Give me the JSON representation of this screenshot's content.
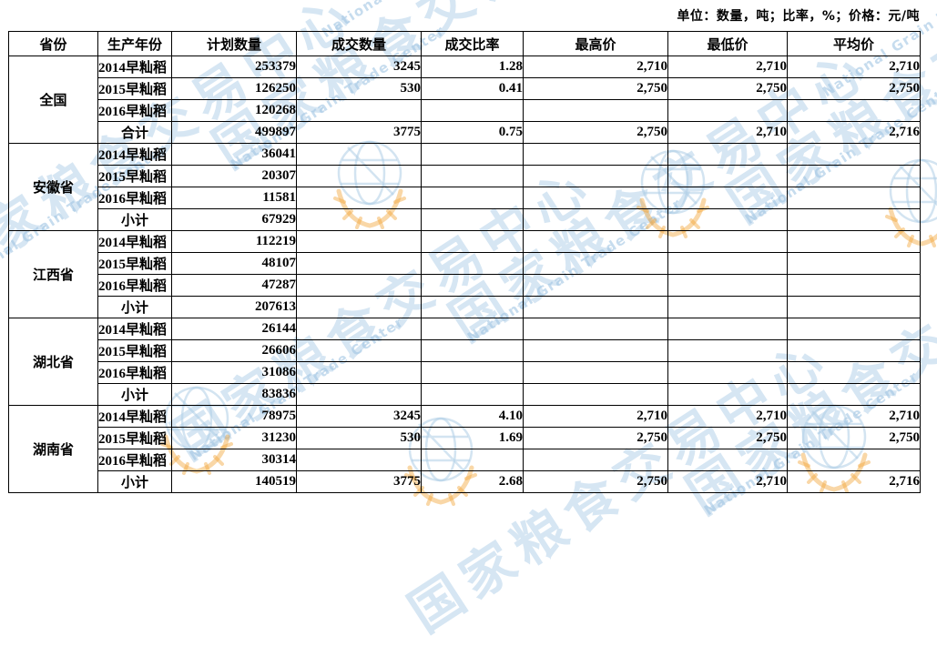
{
  "unit_note": "单位：数量，吨；比率，%；价格：元/吨",
  "watermark": {
    "cjk_text": "国家粮食交易中心",
    "en_text": "National Grain Trade Center",
    "blue": "#aecde6",
    "orange": "#f2a63c"
  },
  "table": {
    "headers": [
      "省份",
      "生产年份",
      "计划数量",
      "成交数量",
      "成交比率",
      "最高价",
      "最低价",
      "平均价"
    ],
    "sections": [
      {
        "province": "全国",
        "rows": [
          {
            "year": "2014早籼稻",
            "planned": "253379",
            "deal": "3245",
            "ratio": "1.28",
            "high": "2,710",
            "low": "2,710",
            "avg": "2,710",
            "summary": false
          },
          {
            "year": "2015早籼稻",
            "planned": "126250",
            "deal": "530",
            "ratio": "0.41",
            "high": "2,750",
            "low": "2,750",
            "avg": "2,750",
            "summary": false
          },
          {
            "year": "2016早籼稻",
            "planned": "120268",
            "deal": "",
            "ratio": "",
            "high": "",
            "low": "",
            "avg": "",
            "summary": false
          },
          {
            "year": "合计",
            "planned": "499897",
            "deal": "3775",
            "ratio": "0.75",
            "high": "2,750",
            "low": "2,710",
            "avg": "2,716",
            "summary": true
          }
        ]
      },
      {
        "province": "安徽省",
        "rows": [
          {
            "year": "2014早籼稻",
            "planned": "36041",
            "deal": "",
            "ratio": "",
            "high": "",
            "low": "",
            "avg": "",
            "summary": false
          },
          {
            "year": "2015早籼稻",
            "planned": "20307",
            "deal": "",
            "ratio": "",
            "high": "",
            "low": "",
            "avg": "",
            "summary": false
          },
          {
            "year": "2016早籼稻",
            "planned": "11581",
            "deal": "",
            "ratio": "",
            "high": "",
            "low": "",
            "avg": "",
            "summary": false
          },
          {
            "year": "小计",
            "planned": "67929",
            "deal": "",
            "ratio": "",
            "high": "",
            "low": "",
            "avg": "",
            "summary": true
          }
        ]
      },
      {
        "province": "江西省",
        "rows": [
          {
            "year": "2014早籼稻",
            "planned": "112219",
            "deal": "",
            "ratio": "",
            "high": "",
            "low": "",
            "avg": "",
            "summary": false
          },
          {
            "year": "2015早籼稻",
            "planned": "48107",
            "deal": "",
            "ratio": "",
            "high": "",
            "low": "",
            "avg": "",
            "summary": false
          },
          {
            "year": "2016早籼稻",
            "planned": "47287",
            "deal": "",
            "ratio": "",
            "high": "",
            "low": "",
            "avg": "",
            "summary": false
          },
          {
            "year": "小计",
            "planned": "207613",
            "deal": "",
            "ratio": "",
            "high": "",
            "low": "",
            "avg": "",
            "summary": true
          }
        ]
      },
      {
        "province": "湖北省",
        "rows": [
          {
            "year": "2014早籼稻",
            "planned": "26144",
            "deal": "",
            "ratio": "",
            "high": "",
            "low": "",
            "avg": "",
            "summary": false
          },
          {
            "year": "2015早籼稻",
            "planned": "26606",
            "deal": "",
            "ratio": "",
            "high": "",
            "low": "",
            "avg": "",
            "summary": false
          },
          {
            "year": "2016早籼稻",
            "planned": "31086",
            "deal": "",
            "ratio": "",
            "high": "",
            "low": "",
            "avg": "",
            "summary": false
          },
          {
            "year": "小计",
            "planned": "83836",
            "deal": "",
            "ratio": "",
            "high": "",
            "low": "",
            "avg": "",
            "summary": true
          }
        ]
      },
      {
        "province": "湖南省",
        "rows": [
          {
            "year": "2014早籼稻",
            "planned": "78975",
            "deal": "3245",
            "ratio": "4.10",
            "high": "2,710",
            "low": "2,710",
            "avg": "2,710",
            "summary": false
          },
          {
            "year": "2015早籼稻",
            "planned": "31230",
            "deal": "530",
            "ratio": "1.69",
            "high": "2,750",
            "low": "2,750",
            "avg": "2,750",
            "summary": false
          },
          {
            "year": "2016早籼稻",
            "planned": "30314",
            "deal": "",
            "ratio": "",
            "high": "",
            "low": "",
            "avg": "",
            "summary": false
          },
          {
            "year": "小计",
            "planned": "140519",
            "deal": "3775",
            "ratio": "2.68",
            "high": "2,750",
            "low": "2,710",
            "avg": "2,716",
            "summary": true
          }
        ]
      }
    ]
  }
}
